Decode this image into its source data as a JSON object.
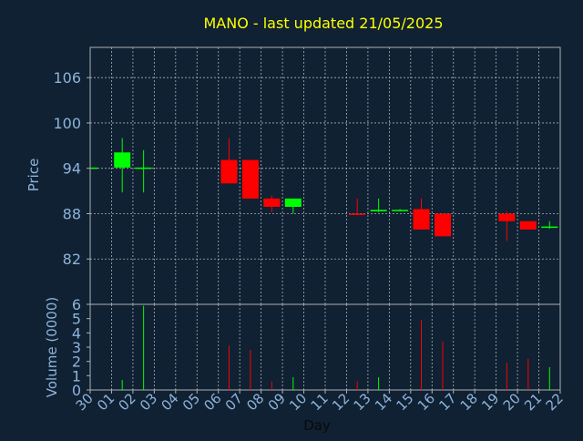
{
  "chart_data": [
    {
      "type": "candlestick",
      "title": "MANO - last updated 21/05/2025",
      "ylabel": "Price",
      "ylim": [
        76,
        110
      ],
      "yticks": [
        82,
        88,
        94,
        100,
        106
      ],
      "grid": true,
      "candles": [
        {
          "day": "30",
          "open": 94.1,
          "high": 94.1,
          "low": 94.1,
          "close": 94.1
        },
        {
          "day": "01",
          "open": 94.1,
          "high": 98.0,
          "low": 90.8,
          "close": 96.1
        },
        {
          "day": "02",
          "open": 94.1,
          "high": 96.4,
          "low": 90.8,
          "close": 94.1
        },
        {
          "day": "06",
          "open": 95.1,
          "high": 98.0,
          "low": 92.0,
          "close": 92.0
        },
        {
          "day": "07",
          "open": 95.1,
          "high": 95.1,
          "low": 90.0,
          "close": 90.0
        },
        {
          "day": "08",
          "open": 90.0,
          "high": 90.4,
          "low": 88.2,
          "close": 88.9
        },
        {
          "day": "09",
          "open": 88.9,
          "high": 90.0,
          "low": 88.0,
          "close": 90.0
        },
        {
          "day": "12",
          "open": 88.0,
          "high": 90.0,
          "low": 87.8,
          "close": 87.9
        },
        {
          "day": "13",
          "open": 88.3,
          "high": 90.0,
          "low": 88.2,
          "close": 88.5
        },
        {
          "day": "14",
          "open": 88.5,
          "high": 88.6,
          "low": 88.3,
          "close": 88.5
        },
        {
          "day": "15",
          "open": 88.6,
          "high": 90.0,
          "low": 85.9,
          "close": 85.9
        },
        {
          "day": "16",
          "open": 88.0,
          "high": 88.0,
          "low": 85.0,
          "close": 85.0
        },
        {
          "day": "19",
          "open": 88.0,
          "high": 88.3,
          "low": 84.4,
          "close": 87.0
        },
        {
          "day": "20",
          "open": 87.0,
          "high": 87.0,
          "low": 85.9,
          "close": 85.9
        },
        {
          "day": "21",
          "open": 86.2,
          "high": 87.0,
          "low": 86.0,
          "close": 86.3
        }
      ]
    },
    {
      "type": "bar",
      "ylabel": "Volume (0000)",
      "xlabel": "Day",
      "ylim": [
        0,
        6
      ],
      "yticks": [
        0,
        1,
        2,
        3,
        4,
        5,
        6
      ],
      "categories": [
        "30",
        "01",
        "02",
        "03",
        "04",
        "05",
        "06",
        "07",
        "08",
        "09",
        "10",
        "11",
        "12",
        "13",
        "14",
        "15",
        "16",
        "17",
        "18",
        "19",
        "20",
        "21",
        "22"
      ],
      "values": [
        0,
        0.7,
        5.9,
        0,
        0,
        0,
        3.1,
        2.8,
        0.6,
        0.9,
        0,
        0,
        0.6,
        0.9,
        0,
        4.9,
        3.4,
        0,
        0,
        1.9,
        2.2,
        1.6,
        0
      ],
      "bar_colors": [
        "none",
        "#00ff00",
        "#00ff00",
        "none",
        "none",
        "none",
        "#ff0000",
        "#ff0000",
        "#ff0000",
        "#00ff00",
        "none",
        "none",
        "#ff0000",
        "#00ff00",
        "none",
        "#ff0000",
        "#ff0000",
        "none",
        "none",
        "#ff0000",
        "#ff0000",
        "#00ff00",
        "none"
      ]
    }
  ],
  "colors": {
    "background": "#0f2133",
    "frame": "#b0b0b0",
    "title": "#ffff00",
    "axis_text": "#8fb3d9",
    "up": "#00ff00",
    "down": "#ff0000"
  }
}
